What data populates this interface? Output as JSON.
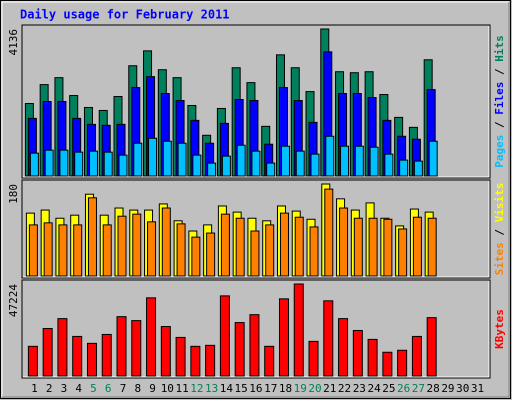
{
  "chart_data": {
    "type": "bar",
    "title": "Daily usage for February 2011",
    "categories": [
      "1",
      "2",
      "3",
      "4",
      "5",
      "6",
      "7",
      "8",
      "9",
      "10",
      "11",
      "12",
      "13",
      "14",
      "15",
      "16",
      "17",
      "18",
      "19",
      "20",
      "21",
      "22",
      "23",
      "24",
      "25",
      "26",
      "27",
      "28",
      "29",
      "30",
      "31"
    ],
    "category_colors": [
      "#000000",
      "#000000",
      "#000000",
      "#000000",
      "#00805c",
      "#00805c",
      "#000000",
      "#000000",
      "#000000",
      "#000000",
      "#000000",
      "#00805c",
      "#00805c",
      "#000000",
      "#000000",
      "#000000",
      "#000000",
      "#000000",
      "#00805c",
      "#00805c",
      "#000000",
      "#000000",
      "#000000",
      "#000000",
      "#000000",
      "#00805c",
      "#00805c",
      "#000000",
      "#000000",
      "#000000",
      "#000000"
    ],
    "separator": " / ",
    "panels": [
      {
        "ylim": [
          0,
          4136
        ],
        "yticks": [
          4136
        ],
        "series": [
          {
            "name": "Hits",
            "color": "#00805c",
            "values": [
              2040,
              2571,
              2767,
              2264,
              1928,
              1844,
              2236,
              3102,
              3521,
              2990,
              2767,
              1984,
              1146,
              1900,
              3046,
              2627,
              1397,
              3409,
              3046,
              2375,
              4136,
              2934,
              2906,
              2934,
              2292,
              1649,
              1369,
              3270,
              null,
              null,
              null
            ]
          },
          {
            "name": "Files",
            "color": "#0000ff",
            "values": [
              1621,
              2096,
              2096,
              1621,
              1453,
              1425,
              1453,
              2487,
              2795,
              2320,
              2124,
              1565,
              922,
              1481,
              2152,
              2124,
              894,
              2487,
              2124,
              1509,
              3493,
              2320,
              2320,
              2208,
              1565,
              1118,
              1034,
              2431,
              null,
              null,
              null
            ]
          },
          {
            "name": "Pages",
            "color": "#00c0ff",
            "values": [
              643,
              727,
              727,
              671,
              699,
              671,
              587,
              922,
              1062,
              978,
              922,
              587,
              363,
              559,
              866,
              699,
              363,
              838,
              699,
              615,
              1118,
              838,
              838,
              810,
              615,
              447,
              419,
              978,
              null,
              null,
              null
            ]
          }
        ]
      },
      {
        "ylim": [
          0,
          180
        ],
        "yticks": [
          180
        ],
        "series": [
          {
            "name": "Visits",
            "color": "#ffff00",
            "values": [
              123,
              129,
              113,
              119,
              160,
              119,
              133,
              129,
              129,
              141,
              108,
              88,
              100,
              137,
              125,
              113,
              108,
              137,
              127,
              111,
              180,
              151,
              129,
              143,
              113,
              98,
              131,
              125,
              null,
              null,
              null
            ]
          },
          {
            "name": "Sites",
            "color": "#ff8000",
            "values": [
              100,
              104,
              100,
              100,
              153,
              100,
              117,
              121,
              106,
              133,
              102,
              76,
              84,
              121,
              113,
              88,
              100,
              123,
              115,
              96,
              170,
              133,
              113,
              113,
              111,
              92,
              115,
              113,
              null,
              null,
              null
            ]
          }
        ]
      },
      {
        "ylim": [
          0,
          47224
        ],
        "yticks": [
          47224
        ],
        "series": [
          {
            "name": "KBytes",
            "color": "#ff0000",
            "values": [
              15233,
              24373,
              29451,
              20311,
              16757,
              21327,
              30467,
              28436,
              40115,
              25389,
              19804,
              15233,
              15741,
              41130,
              27420,
              31482,
              15233,
              39607,
              47224,
              17773,
              38591,
              29451,
              23358,
              18788,
              12187,
              13202,
              20311,
              29959,
              null,
              null,
              null
            ]
          }
        ]
      }
    ]
  }
}
